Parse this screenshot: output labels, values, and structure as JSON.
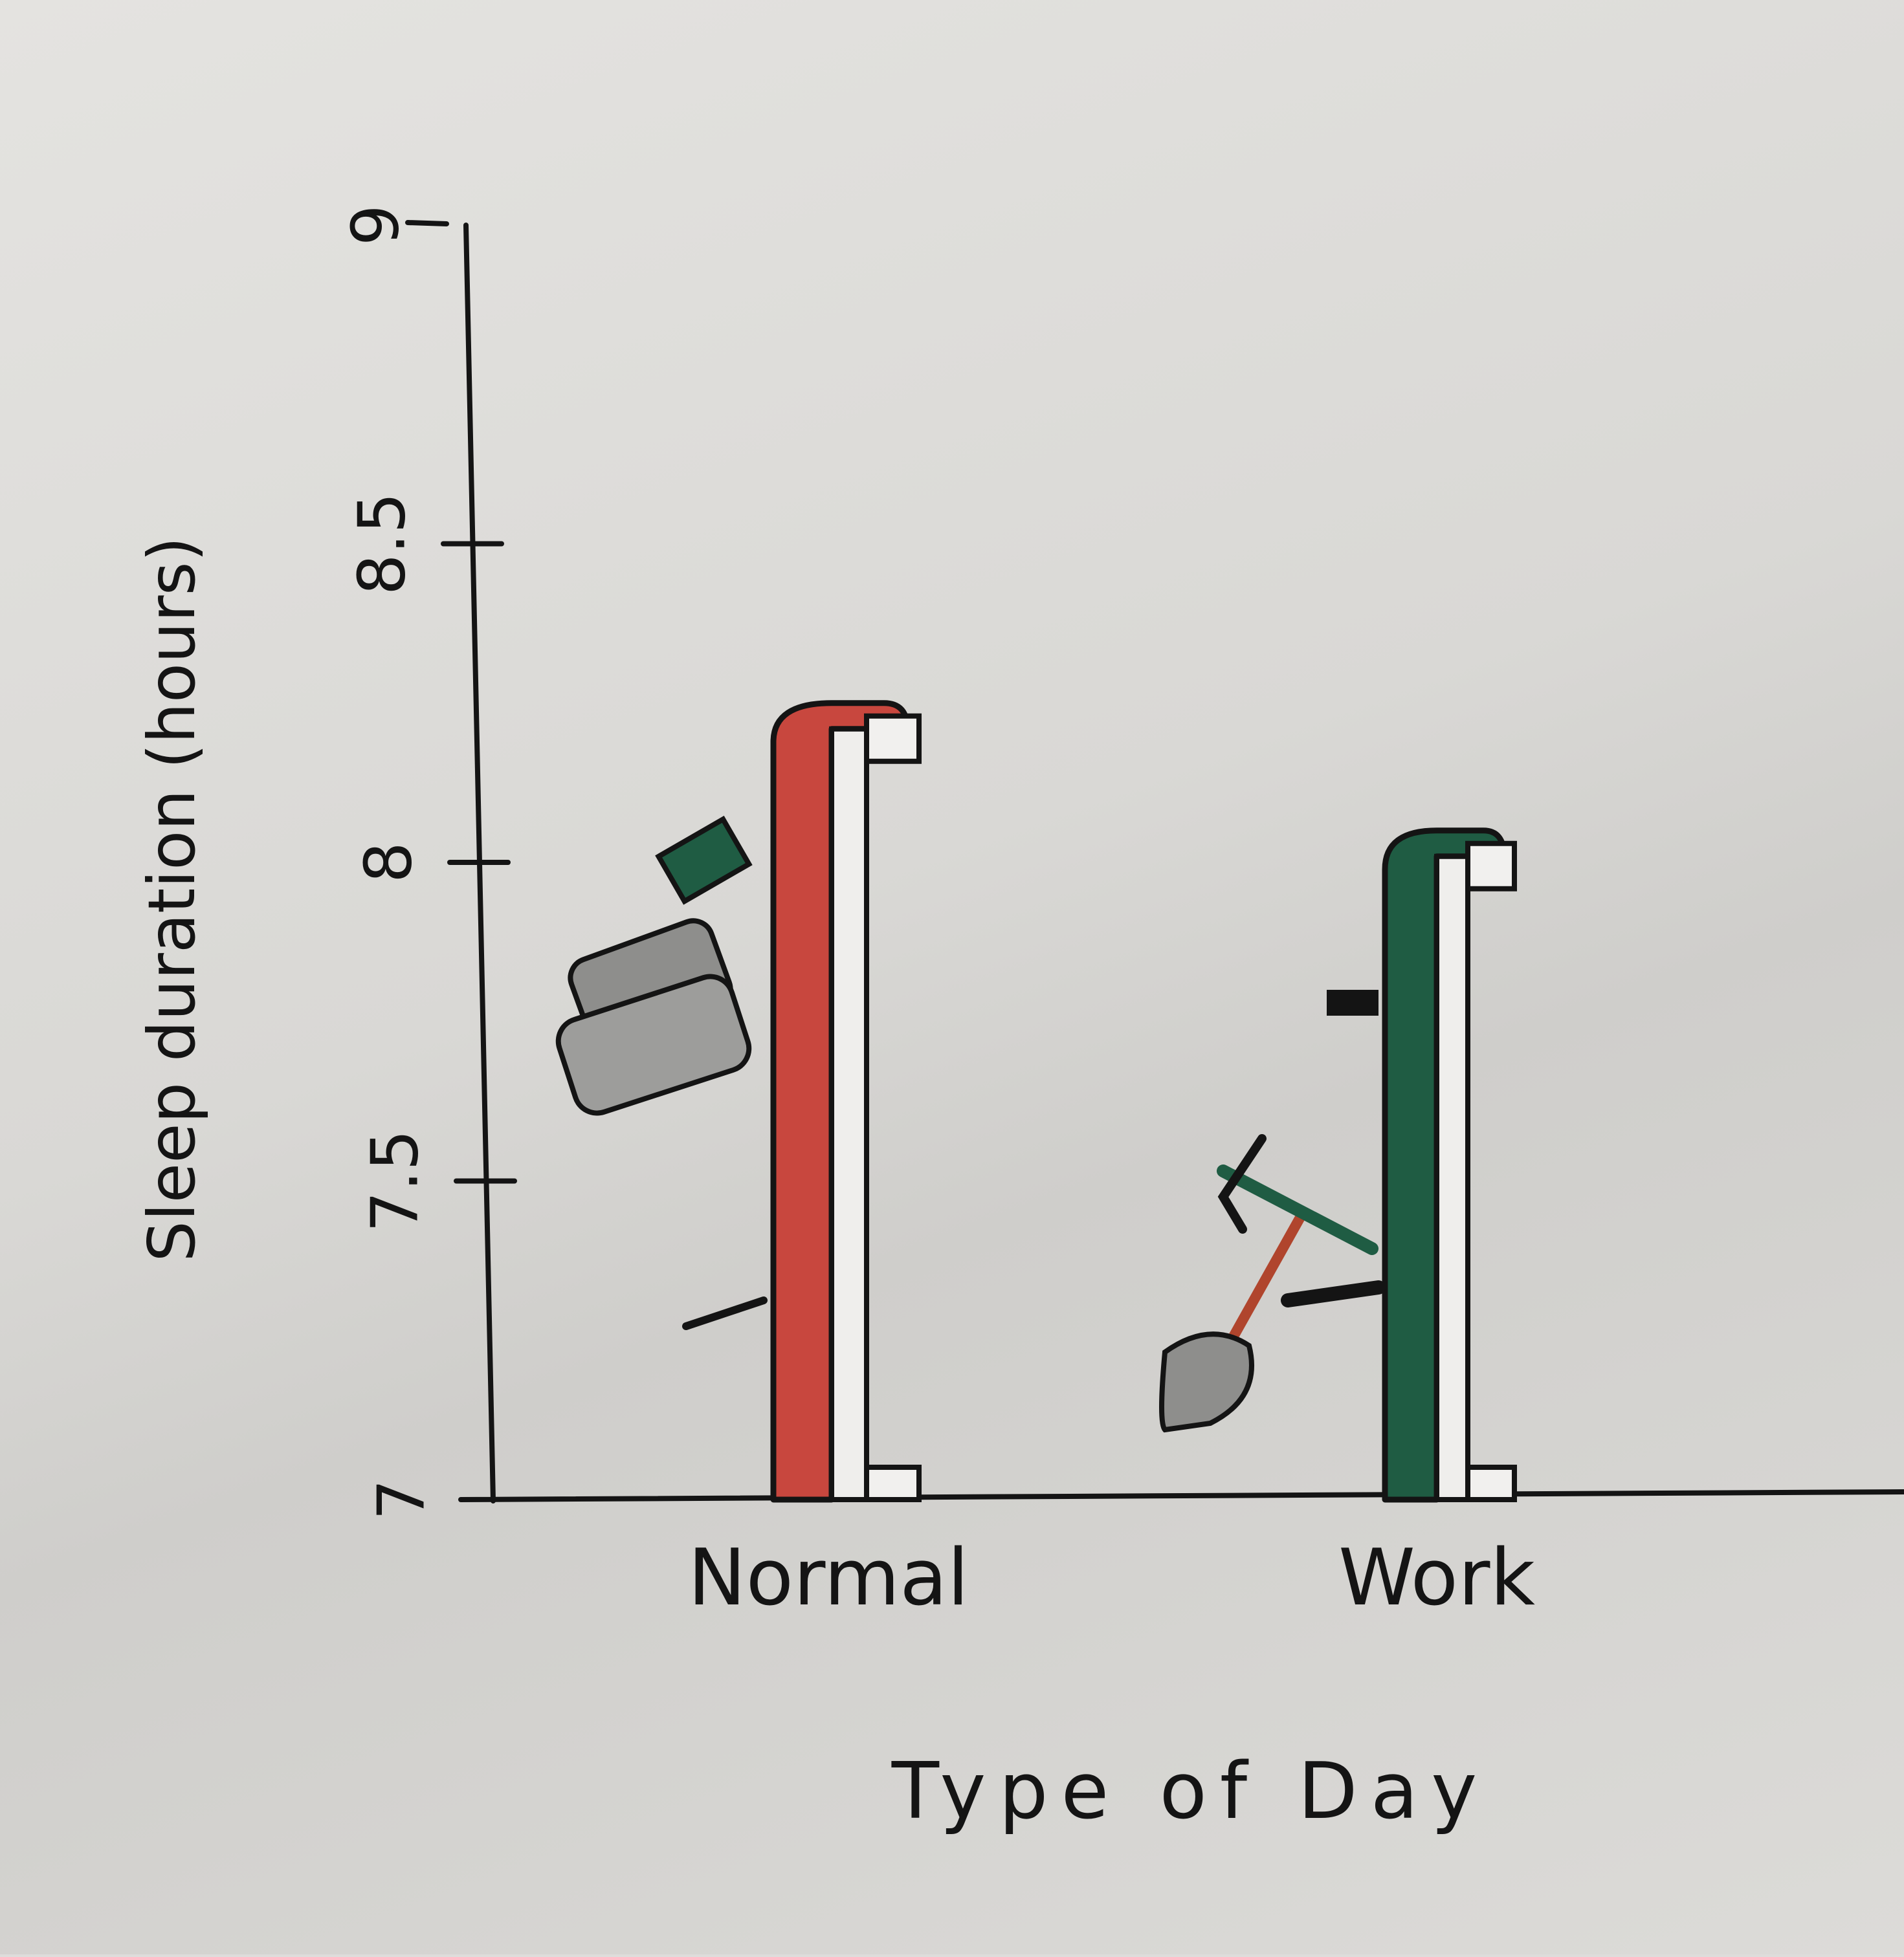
{
  "chart_data": {
    "type": "bar",
    "xlabel": "Type of Day",
    "ylabel": "Sleep duration (hours)",
    "categories": [
      "Normal",
      "Work"
    ],
    "values": [
      8.25,
      8.05
    ],
    "ylim": [
      7,
      9
    ],
    "yticks": [
      "7",
      "7.5",
      "8",
      "8.5",
      "9"
    ],
    "colors": [
      "#c8473e",
      "#1f5c43"
    ],
    "grid": false,
    "legend": "none"
  }
}
